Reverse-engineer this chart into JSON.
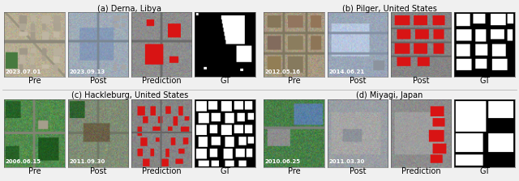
{
  "background_color": "#f0f0f0",
  "groups": [
    {
      "label": "(a) Derna, Libya",
      "panels": [
        {
          "sublabel": "Pre",
          "date": "2023.07.01"
        },
        {
          "sublabel": "Post",
          "date": "2023.09.13"
        },
        {
          "sublabel": "Prediction",
          "date": ""
        },
        {
          "sublabel": "GT",
          "date": ""
        }
      ]
    },
    {
      "label": "(b) Pilger, United States",
      "panels": [
        {
          "sublabel": "Pre",
          "date": "2012.05.16"
        },
        {
          "sublabel": "Post",
          "date": "2014.06.21"
        },
        {
          "sublabel": "Post",
          "date": ""
        },
        {
          "sublabel": "GT",
          "date": ""
        }
      ]
    },
    {
      "label": "(c) Hackleburg, United States",
      "panels": [
        {
          "sublabel": "Pre",
          "date": "2006.06.15"
        },
        {
          "sublabel": "Post",
          "date": "2011.09.30"
        },
        {
          "sublabel": "Prediction",
          "date": ""
        },
        {
          "sublabel": "GT",
          "date": ""
        }
      ]
    },
    {
      "label": "(d) Miyagi, Japan",
      "panels": [
        {
          "sublabel": "Pre",
          "date": "2010.06.25"
        },
        {
          "sublabel": "Post",
          "date": "2011.03.30"
        },
        {
          "sublabel": "Prediction",
          "date": ""
        },
        {
          "sublabel": "GT",
          "date": ""
        }
      ]
    }
  ],
  "label_fontsize": 7,
  "date_fontsize": 5,
  "group_title_fontsize": 7,
  "label_color": "#000000",
  "date_color": "#ffffff",
  "red": [
    0.85,
    0.08,
    0.08
  ]
}
